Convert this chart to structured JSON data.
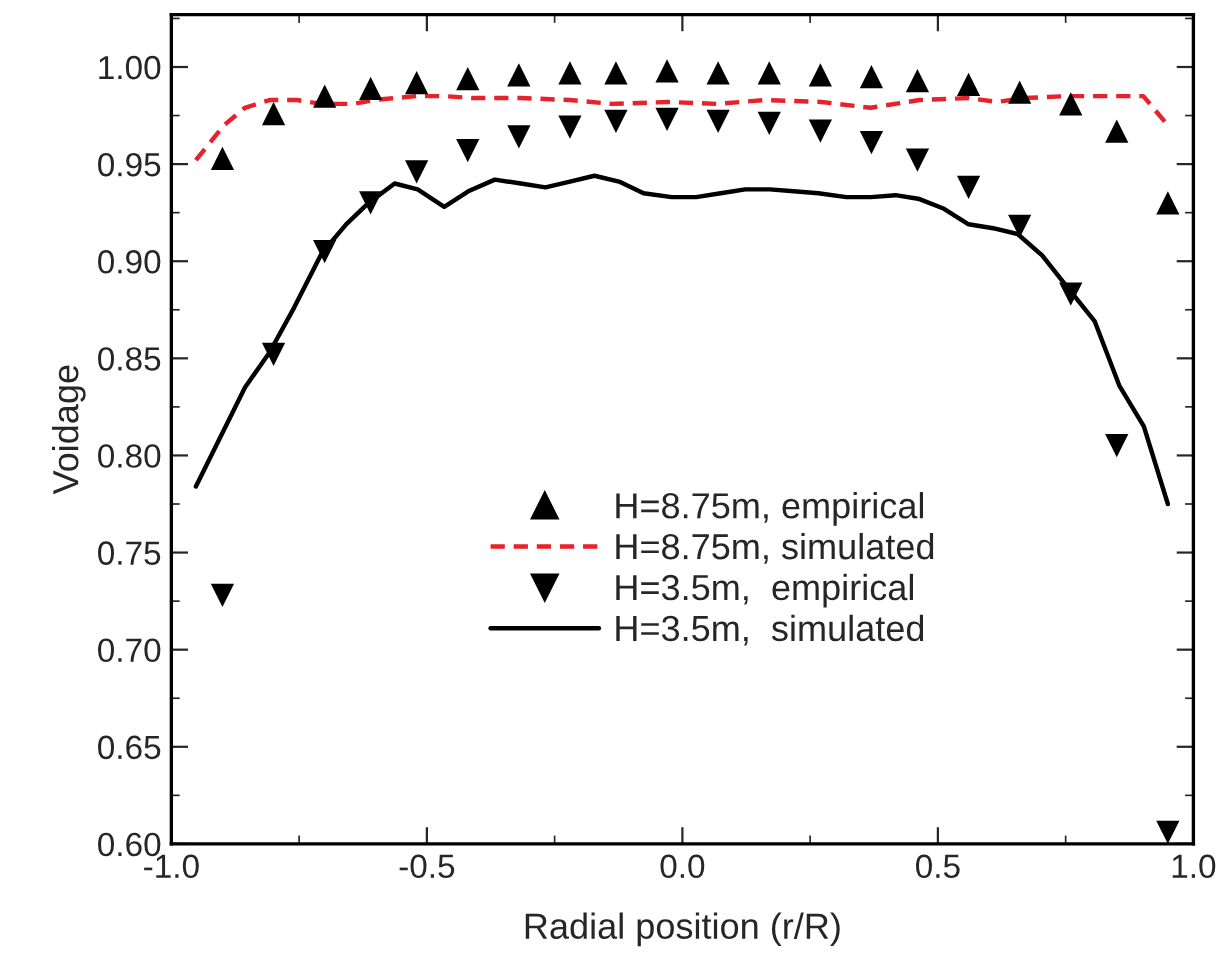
{
  "chart_data": {
    "type": "line",
    "xlabel": "Radial position (r/R)",
    "ylabel": "Voidage",
    "xlim": [
      -1.0,
      1.0
    ],
    "ylim": [
      0.6,
      1.027
    ],
    "xticks": [
      {
        "value": -1.0,
        "label": "-1.0"
      },
      {
        "value": -0.5,
        "label": "-0.5"
      },
      {
        "value": 0.0,
        "label": "0.0"
      },
      {
        "value": 0.5,
        "label": "0.5"
      },
      {
        "value": 1.0,
        "label": "1.0"
      }
    ],
    "yticks": [
      {
        "value": 0.6,
        "label": "0.60"
      },
      {
        "value": 0.65,
        "label": "0.65"
      },
      {
        "value": 0.7,
        "label": "0.70"
      },
      {
        "value": 0.75,
        "label": "0.75"
      },
      {
        "value": 0.8,
        "label": "0.80"
      },
      {
        "value": 0.85,
        "label": "0.85"
      },
      {
        "value": 0.9,
        "label": "0.90"
      },
      {
        "value": 0.95,
        "label": "0.95"
      },
      {
        "value": 1.0,
        "label": "1.00"
      }
    ],
    "grid": false,
    "legend": "center",
    "series": [
      {
        "name": "H=8.75m, empirical",
        "type": "scatter",
        "marker": "triangle",
        "color": "#000000",
        "x": [
          -0.9,
          -0.8,
          -0.7,
          -0.61,
          -0.52,
          -0.42,
          -0.32,
          -0.22,
          -0.13,
          -0.03,
          0.07,
          0.17,
          0.27,
          0.37,
          0.46,
          0.56,
          0.66,
          0.76,
          0.85,
          0.95
        ],
        "values": [
          0.953,
          0.976,
          0.985,
          0.989,
          0.992,
          0.994,
          0.996,
          0.997,
          0.997,
          0.998,
          0.997,
          0.997,
          0.996,
          0.995,
          0.993,
          0.991,
          0.987,
          0.981,
          0.967,
          0.93
        ]
      },
      {
        "name": "H=8.75m, simulated",
        "line_style": "dashed",
        "color": "#e8222b",
        "x": [
          -0.952,
          -0.897,
          -0.856,
          -0.808,
          -0.754,
          -0.706,
          -0.644,
          -0.603,
          -0.521,
          -0.466,
          -0.411,
          -0.316,
          -0.22,
          -0.138,
          -0.028,
          0.067,
          0.163,
          0.272,
          0.368,
          0.464,
          0.56,
          0.615,
          0.669,
          0.751,
          0.847,
          0.902,
          0.95
        ],
        "values": [
          0.952,
          0.97,
          0.979,
          0.983,
          0.983,
          0.981,
          0.981,
          0.983,
          0.985,
          0.985,
          0.984,
          0.984,
          0.983,
          0.981,
          0.982,
          0.981,
          0.983,
          0.982,
          0.979,
          0.983,
          0.984,
          0.982,
          0.984,
          0.985,
          0.985,
          0.985,
          0.97
        ]
      },
      {
        "name": "H=3.5m,  empirical",
        "type": "scatter",
        "marker": "triangle_down",
        "color": "#000000",
        "x": [
          -0.9,
          -0.8,
          -0.7,
          -0.61,
          -0.52,
          -0.42,
          -0.32,
          -0.22,
          -0.13,
          -0.03,
          0.07,
          0.17,
          0.27,
          0.37,
          0.46,
          0.56,
          0.66,
          0.76,
          0.85,
          0.95
        ],
        "values": [
          0.728,
          0.852,
          0.905,
          0.93,
          0.946,
          0.957,
          0.964,
          0.969,
          0.972,
          0.973,
          0.972,
          0.971,
          0.967,
          0.961,
          0.952,
          0.938,
          0.918,
          0.883,
          0.805,
          0.606
        ]
      },
      {
        "name": "H=3.5m,  simulated",
        "line_style": "solid",
        "color": "#000000",
        "x": [
          -0.952,
          -0.856,
          -0.808,
          -0.76,
          -0.706,
          -0.658,
          -0.614,
          -0.563,
          -0.518,
          -0.466,
          -0.419,
          -0.367,
          -0.316,
          -0.268,
          -0.22,
          -0.172,
          -0.124,
          -0.076,
          -0.021,
          0.027,
          0.075,
          0.123,
          0.171,
          0.218,
          0.266,
          0.321,
          0.369,
          0.417,
          0.464,
          0.512,
          0.56,
          0.608,
          0.656,
          0.704,
          0.752,
          0.807,
          0.855,
          0.903,
          0.95
        ],
        "values": [
          0.784,
          0.835,
          0.853,
          0.876,
          0.904,
          0.919,
          0.93,
          0.94,
          0.937,
          0.928,
          0.936,
          0.942,
          0.94,
          0.938,
          0.941,
          0.944,
          0.941,
          0.935,
          0.933,
          0.933,
          0.935,
          0.937,
          0.937,
          0.936,
          0.935,
          0.933,
          0.933,
          0.934,
          0.932,
          0.927,
          0.919,
          0.917,
          0.914,
          0.903,
          0.887,
          0.869,
          0.836,
          0.815,
          0.775
        ]
      }
    ]
  }
}
